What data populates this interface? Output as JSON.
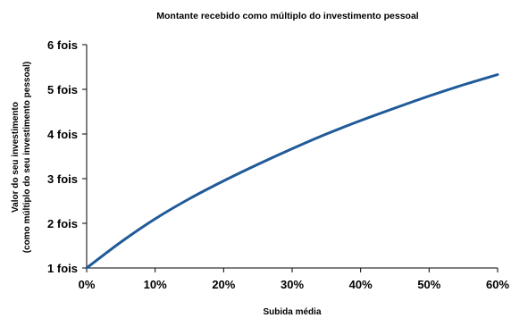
{
  "chart_data": {
    "type": "line",
    "title": "Montante recebido como múltiplo do investimento pessoal",
    "xlabel": "Subida média",
    "ylabel_lines": [
      "Valor do seu investimento",
      "(como múltiplo do seu investimento pessoal)"
    ],
    "xlim": [
      0,
      60
    ],
    "ylim": [
      1,
      6
    ],
    "x_ticks": [
      0,
      10,
      20,
      30,
      40,
      50,
      60
    ],
    "x_tick_labels": [
      "0%",
      "10%",
      "20%",
      "30%",
      "40%",
      "50%",
      "60%"
    ],
    "y_ticks": [
      1,
      2,
      3,
      4,
      5,
      6
    ],
    "y_tick_labels": [
      "1 fois",
      "2 fois",
      "3 fois",
      "4 fois",
      "5 fois",
      "6 fois"
    ],
    "grid": false,
    "legend": "none",
    "series": [
      {
        "color": "#1f5a99",
        "x": [
          0,
          5,
          10,
          15,
          20,
          25,
          30,
          35,
          40,
          45,
          50,
          55,
          60
        ],
        "y": [
          1.0,
          1.58,
          2.1,
          2.55,
          2.95,
          3.32,
          3.67,
          4.0,
          4.3,
          4.58,
          4.85,
          5.1,
          5.33
        ]
      }
    ]
  }
}
